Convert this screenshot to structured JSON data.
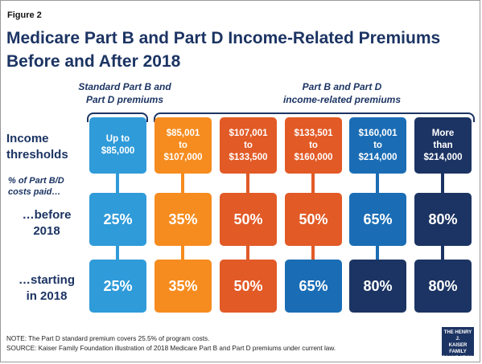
{
  "figure_label": "Figure 2",
  "title_line1": "Medicare Part B and Part D Income-Related Premiums",
  "title_line2": "Before and After 2018",
  "groups": {
    "standard_line1": "Standard Part B and",
    "standard_line2": "Part D premiums",
    "income_related_line1": "Part B and Part D",
    "income_related_line2": "income-related premiums"
  },
  "rows": {
    "income_line1": "Income",
    "income_line2": "thresholds",
    "pct_line1": "% of Part B/D",
    "pct_line2": "costs paid…",
    "before_line1": "…before",
    "before_line2": "2018",
    "starting_line1": "…starting",
    "starting_line2": "in 2018"
  },
  "columns": [
    {
      "thr1": "Up to",
      "thr2": "$85,000",
      "thr3": "",
      "before": "25%",
      "after": "25%",
      "before_color": "#2f9bd9",
      "after_color": "#2f9bd9"
    },
    {
      "thr1": "$85,001",
      "thr2": "to",
      "thr3": "$107,000",
      "before": "35%",
      "after": "35%",
      "before_color": "#f68c1f",
      "after_color": "#f68c1f"
    },
    {
      "thr1": "$107,001",
      "thr2": "to",
      "thr3": "$133,500",
      "before": "50%",
      "after": "50%",
      "before_color": "#e25a26",
      "after_color": "#e25a26"
    },
    {
      "thr1": "$133,501",
      "thr2": "to",
      "thr3": "$160,000",
      "before": "50%",
      "after": "65%",
      "before_color": "#e25a26",
      "after_color": "#1a6db5"
    },
    {
      "thr1": "$160,001",
      "thr2": "to",
      "thr3": "$214,000",
      "before": "65%",
      "after": "80%",
      "before_color": "#1a6db5",
      "after_color": "#1c3463"
    },
    {
      "thr1": "More",
      "thr2": "than",
      "thr3": "$214,000",
      "before": "80%",
      "after": "80%",
      "before_color": "#1c3463",
      "after_color": "#1c3463"
    }
  ],
  "threshold_colors": [
    "#2f9bd9",
    "#f68c1f",
    "#e25a26",
    "#e25a26",
    "#1a6db5",
    "#1c3463"
  ],
  "note": "NOTE: The Part D standard premium covers 25.5% of program costs.",
  "source": "SOURCE: Kaiser Family Foundation illustration of 2018 Medicare Part B and Part D premiums under current law.",
  "logo": {
    "line1": "THE HENRY J.",
    "line2": "KAISER",
    "line3": "FAMILY",
    "line4": "FOUNDATION"
  }
}
